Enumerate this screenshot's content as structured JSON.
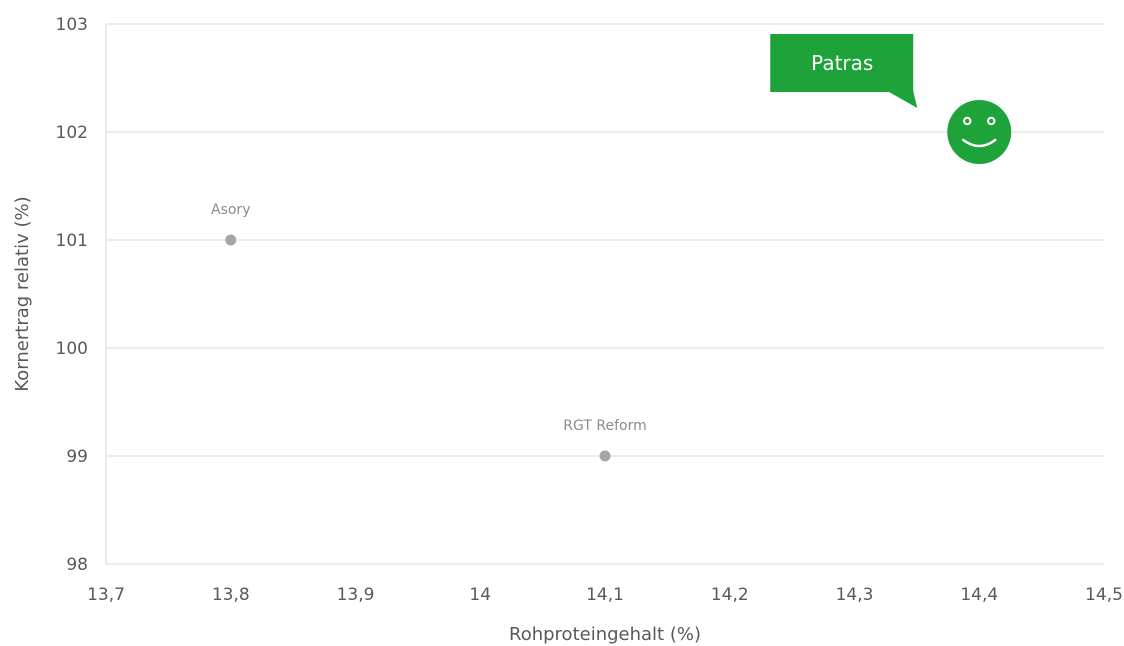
{
  "chart_data": {
    "type": "scatter",
    "xlabel": "Rohproteingehalt (%)",
    "ylabel": "Kornertrag relativ (%)",
    "xlim": [
      13.7,
      14.5
    ],
    "ylim": [
      98,
      103
    ],
    "x_ticks": [
      "13,7",
      "13,8",
      "13,9",
      "14",
      "14,1",
      "14,2",
      "14,3",
      "14,4",
      "14,5"
    ],
    "y_ticks": [
      "98",
      "99",
      "100",
      "101",
      "102",
      "103"
    ],
    "grid": "horizontal",
    "points": [
      {
        "label": "Asory",
        "x": 13.8,
        "y": 101,
        "color": "#a6a6a6",
        "marker": "dot"
      },
      {
        "label": "RGT Reform",
        "x": 14.1,
        "y": 99,
        "color": "#a6a6a6",
        "marker": "dot"
      },
      {
        "label": "Patras",
        "x": 14.4,
        "y": 102,
        "color": "#1ea33a",
        "marker": "smiley-icon",
        "callout": true
      }
    ]
  }
}
